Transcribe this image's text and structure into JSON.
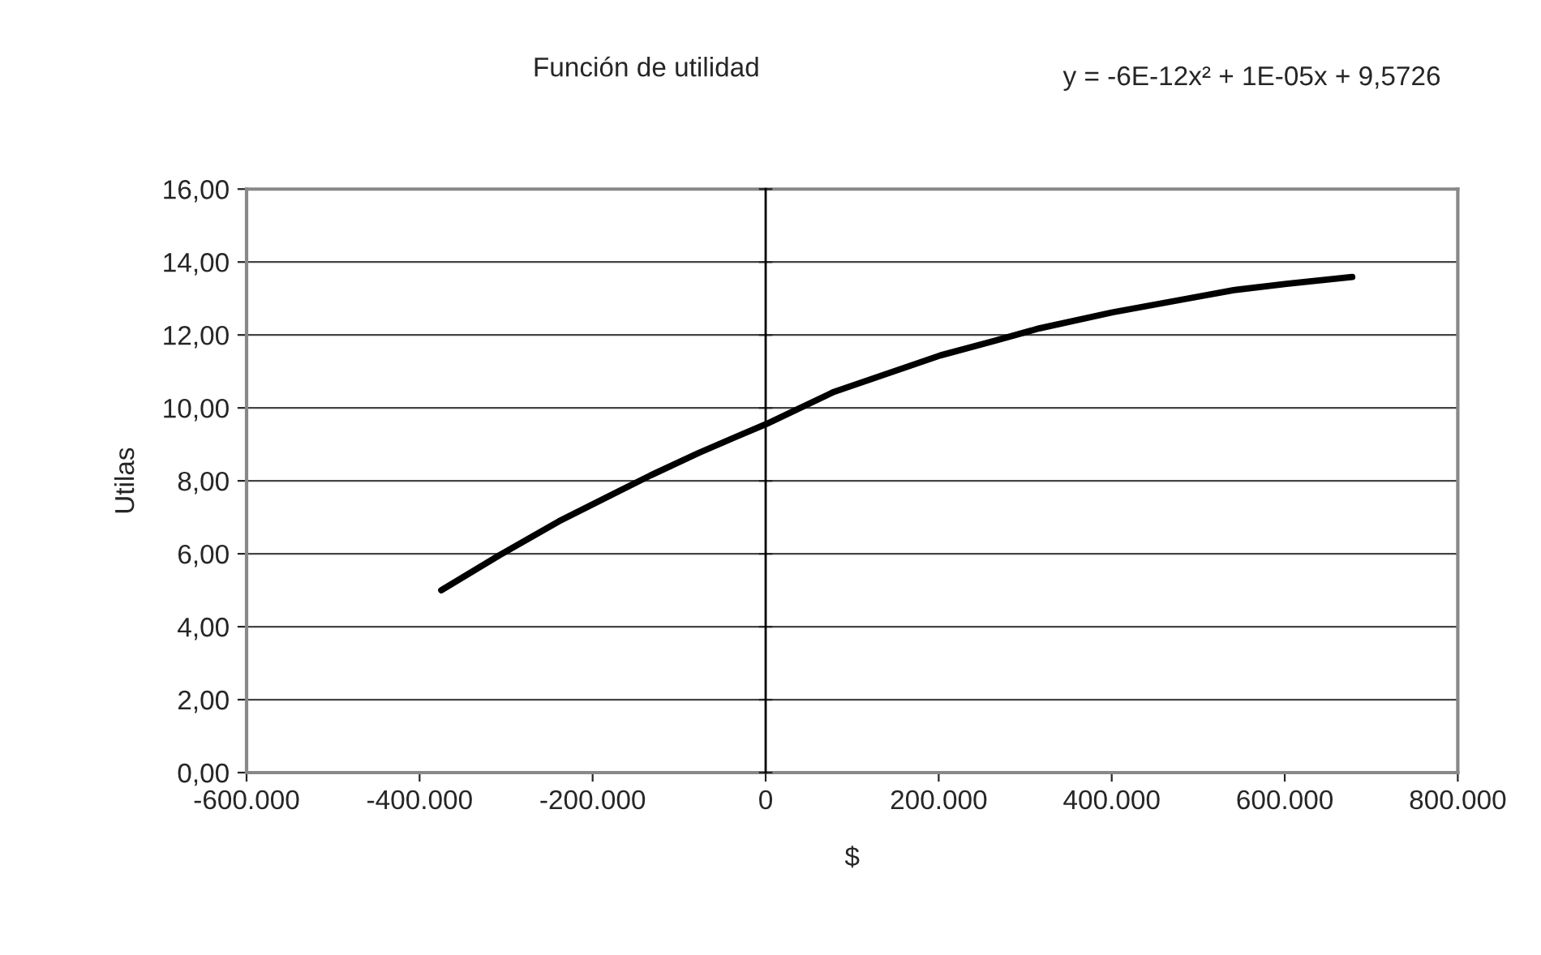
{
  "chart_data": {
    "type": "line",
    "title": "Función de utilidad",
    "xlabel": "$",
    "ylabel": "Utilas",
    "annotations": [
      "y = -6E-12x² + 1E-05x + 9,5726"
    ],
    "x": [
      -375000,
      -307700,
      -239000,
      -183000,
      -133000,
      -77000,
      -33000,
      1000,
      79000,
      202000,
      266000,
      316000,
      401000,
      479000,
      541000,
      602000,
      678000
    ],
    "series": [
      {
        "color": "#000000",
        "values": [
          5.0,
          5.96,
          6.89,
          7.56,
          8.15,
          8.77,
          9.22,
          9.56,
          10.44,
          11.44,
          11.85,
          12.18,
          12.62,
          12.96,
          13.23,
          13.4,
          13.59
        ]
      }
    ],
    "xlim": [
      -600000,
      800000
    ],
    "xticks": [
      {
        "value": -600000,
        "label": "-600.000"
      },
      {
        "value": -400000,
        "label": "-400.000"
      },
      {
        "value": -200000,
        "label": "-200.000"
      },
      0,
      {
        "value": 200000,
        "label": "200.000"
      },
      {
        "value": 400000,
        "label": "400.000"
      },
      {
        "value": 600000,
        "label": "600.000"
      },
      {
        "value": 800000,
        "label": "800.000"
      }
    ],
    "ylim": [
      0,
      16
    ],
    "yticks": [
      {
        "value": 0,
        "label": "0,00"
      },
      {
        "value": 2,
        "label": "2,00"
      },
      {
        "value": 4,
        "label": "4,00"
      },
      {
        "value": 6,
        "label": "6,00"
      },
      {
        "value": 8,
        "label": "8,00"
      },
      {
        "value": 10,
        "label": "10,00"
      },
      {
        "value": 12,
        "label": "12,00"
      },
      {
        "value": 14,
        "label": "14,00"
      },
      {
        "value": 16,
        "label": "16,00"
      }
    ],
    "grid": "y",
    "legend": false,
    "marker": "none",
    "line_style": "solid"
  }
}
